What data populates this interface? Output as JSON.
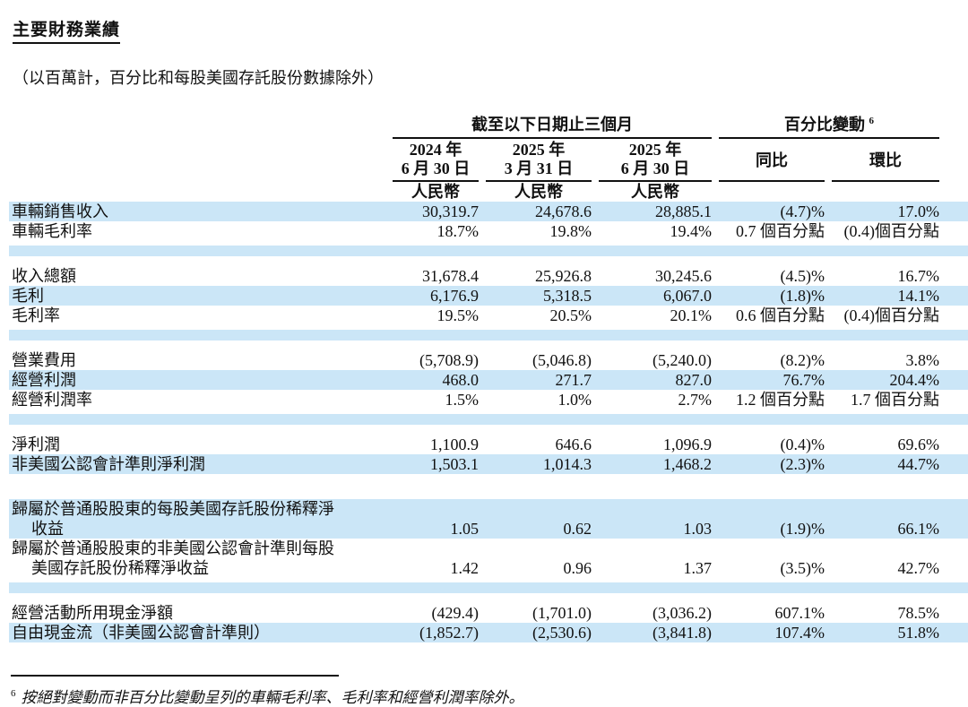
{
  "page": {
    "title": "主要財務業績",
    "subtitle": "（以百萬計，百分比和每股美國存託股份數據除外）",
    "footnote_sup": "6",
    "footnote_text": "按絕對變動而非百分比變動呈列的車輛毛利率、毛利率和經營利潤率除外。"
  },
  "colors": {
    "stripe": "#cbe6f7",
    "rule": "#111111",
    "text": "#111111"
  },
  "table": {
    "group_periods": "截至以下日期止三個月",
    "group_change": "百分比變動",
    "group_change_sup": "6",
    "currency_label": "人民幣",
    "date_columns": [
      {
        "line1": "2024 年",
        "line2": "6 月 30 日"
      },
      {
        "line1": "2025 年",
        "line2": "3 月 31 日"
      },
      {
        "line1": "2025 年",
        "line2": "6 月 30 日"
      }
    ],
    "change_columns": [
      {
        "label": "同比"
      },
      {
        "label": "環比"
      }
    ],
    "rows": [
      {
        "type": "data",
        "bg": "blue",
        "label": "車輛銷售收入",
        "values": [
          "30,319.7",
          "24,678.6",
          "28,885.1",
          "(4.7)%",
          "17.0%"
        ]
      },
      {
        "type": "data",
        "bg": "white",
        "label": "車輛毛利率",
        "values": [
          "18.7%",
          "19.8%",
          "19.4%",
          "0.7 個百分點",
          "(0.4)個百分點"
        ]
      },
      {
        "type": "spacer",
        "band": true
      },
      {
        "type": "data",
        "bg": "white",
        "label": "收入總額",
        "values": [
          "31,678.4",
          "25,926.8",
          "30,245.6",
          "(4.5)%",
          "16.7%"
        ]
      },
      {
        "type": "data",
        "bg": "blue",
        "label": "毛利",
        "values": [
          "6,176.9",
          "5,318.5",
          "6,067.0",
          "(1.8)%",
          "14.1%"
        ]
      },
      {
        "type": "data",
        "bg": "white",
        "label": "毛利率",
        "values": [
          "19.5%",
          "20.5%",
          "20.1%",
          "0.6 個百分點",
          "(0.4)個百分點"
        ]
      },
      {
        "type": "spacer",
        "band": true
      },
      {
        "type": "data",
        "bg": "white",
        "label": "營業費用",
        "values": [
          "(5,708.9)",
          "(5,046.8)",
          "(5,240.0)",
          "(8.2)%",
          "3.8%"
        ]
      },
      {
        "type": "data",
        "bg": "blue",
        "label": "經營利潤",
        "values": [
          "468.0",
          "271.7",
          "827.0",
          "76.7%",
          "204.4%"
        ]
      },
      {
        "type": "data",
        "bg": "white",
        "label": "經營利潤率",
        "values": [
          "1.5%",
          "1.0%",
          "2.7%",
          "1.2 個百分點",
          "1.7 個百分點"
        ]
      },
      {
        "type": "spacer",
        "band": true
      },
      {
        "type": "data",
        "bg": "white",
        "label": "淨利潤",
        "values": [
          "1,100.9",
          "646.6",
          "1,096.9",
          "(0.4)%",
          "69.6%"
        ]
      },
      {
        "type": "data",
        "bg": "blue",
        "label": "非美國公認會計準則淨利潤",
        "values": [
          "1,503.1",
          "1,014.3",
          "1,468.2",
          "(2.3)%",
          "44.7%"
        ]
      },
      {
        "type": "spacer",
        "band": false
      },
      {
        "type": "data",
        "bg": "blue",
        "label": "歸屬於普通股股東的每股美國存託股份稀釋淨",
        "label2": "收益",
        "values": [
          "1.05",
          "0.62",
          "1.03",
          "(1.9)%",
          "66.1%"
        ]
      },
      {
        "type": "data",
        "bg": "white",
        "label": "歸屬於普通股股東的非美國公認會計準則每股",
        "label2": "美國存託股份稀釋淨收益",
        "values": [
          "1.42",
          "0.96",
          "1.37",
          "(3.5)%",
          "42.7%"
        ]
      },
      {
        "type": "spacer",
        "band": true
      },
      {
        "type": "data",
        "bg": "white",
        "label": "經營活動所用現金淨額",
        "values": [
          "(429.4)",
          "(1,701.0)",
          "(3,036.2)",
          "607.1%",
          "78.5%"
        ]
      },
      {
        "type": "data",
        "bg": "blue",
        "label": "自由現金流（非美國公認會計準則）",
        "values": [
          "(1,852.7)",
          "(2,530.6)",
          "(3,841.8)",
          "107.4%",
          "51.8%"
        ]
      }
    ]
  }
}
